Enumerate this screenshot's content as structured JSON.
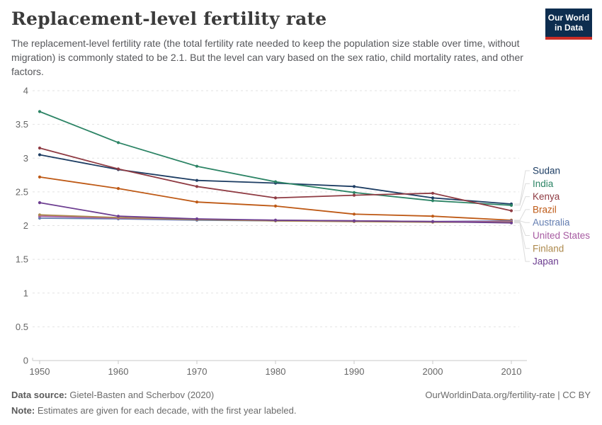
{
  "header": {
    "title": "Replacement-level fertility rate",
    "subtitle": "The replacement-level fertility rate (the total fertility rate needed to keep the population size stable over time, without migration) is commonly stated to be 2.1. But the level can vary based on the sex ratio, child mortality rates, and other factors.",
    "logo": {
      "line1": "Our World",
      "line2": "in Data",
      "bg_color": "#0d2d4f",
      "stripe_color": "#cb2d26"
    }
  },
  "chart_data": {
    "type": "line",
    "title": "Replacement-level fertility rate",
    "x": [
      1950,
      1960,
      1970,
      1980,
      1990,
      2000,
      2010
    ],
    "x_tick_labels": [
      "1950",
      "1960",
      "1970",
      "1980",
      "1990",
      "2000",
      "2010"
    ],
    "y_ticks": [
      0,
      0.5,
      1,
      1.5,
      2,
      2.5,
      3,
      3.5,
      4
    ],
    "y_tick_labels": [
      "0",
      "0.5",
      "1",
      "1.5",
      "2",
      "2.5",
      "3",
      "3.5",
      "4"
    ],
    "ylim": [
      0,
      4
    ],
    "grid": true,
    "grid_style": "dashed",
    "legend_position": "right",
    "marker": "dot",
    "series": [
      {
        "name": "Sudan",
        "color": "#1d3d63",
        "values": [
          3.05,
          2.83,
          2.67,
          2.63,
          2.58,
          2.41,
          2.32
        ]
      },
      {
        "name": "India",
        "color": "#2c8465",
        "values": [
          3.69,
          3.23,
          2.88,
          2.65,
          2.49,
          2.37,
          2.3
        ]
      },
      {
        "name": "Kenya",
        "color": "#8f3b43",
        "values": [
          3.15,
          2.84,
          2.58,
          2.41,
          2.45,
          2.48,
          2.22
        ]
      },
      {
        "name": "Brazil",
        "color": "#be5915",
        "values": [
          2.72,
          2.55,
          2.35,
          2.29,
          2.17,
          2.14,
          2.08
        ]
      },
      {
        "name": "Australia",
        "color": "#647eb1",
        "values": [
          2.11,
          2.1,
          2.08,
          2.07,
          2.07,
          2.06,
          2.07
        ]
      },
      {
        "name": "United States",
        "color": "#a75ba2",
        "values": [
          2.14,
          2.11,
          2.09,
          2.08,
          2.07,
          2.06,
          2.06
        ]
      },
      {
        "name": "Finland",
        "color": "#ad8a4e",
        "values": [
          2.16,
          2.12,
          2.09,
          2.07,
          2.06,
          2.05,
          2.05
        ]
      },
      {
        "name": "Japan",
        "color": "#6d3e91",
        "values": [
          2.34,
          2.14,
          2.1,
          2.08,
          2.07,
          2.06,
          2.04
        ]
      }
    ]
  },
  "footer": {
    "datasource_label": "Data source:",
    "datasource_value": " Gietel-Basten and Scherbov (2020)",
    "link": "OurWorldinData.org/fertility-rate | CC BY",
    "note_label": "Note:",
    "note_value": " Estimates are given for each decade, with the first year labeled."
  }
}
